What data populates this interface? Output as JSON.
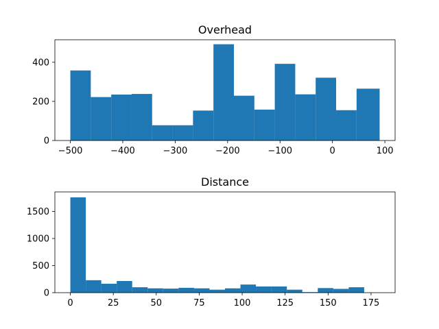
{
  "chart_data": [
    {
      "type": "bar",
      "title": "Overhead",
      "xlabel": "",
      "ylabel": "",
      "xlim": [
        -529.5,
        119.5
      ],
      "ylim": [
        0,
        515
      ],
      "xticks": [
        -500,
        -400,
        -300,
        -200,
        -100,
        0,
        100
      ],
      "yticks": [
        0,
        200,
        400
      ],
      "bins": [
        -500,
        -461,
        -422,
        -383,
        -344,
        -305,
        -266,
        -227,
        -188,
        -149,
        -110,
        -71,
        -32,
        7,
        46,
        90
      ],
      "counts": [
        358,
        222,
        235,
        238,
        78,
        78,
        153,
        492,
        229,
        158,
        392,
        236,
        321,
        155,
        265
      ],
      "color": "#1f77b4",
      "grid": false
    },
    {
      "type": "bar",
      "title": "Distance",
      "xlabel": "",
      "ylabel": "",
      "xlim": [
        -9,
        189
      ],
      "ylim": [
        0,
        1860
      ],
      "xticks": [
        0,
        25,
        50,
        75,
        100,
        125,
        150,
        175
      ],
      "yticks": [
        0,
        500,
        1000,
        1500
      ],
      "bins": [
        0,
        9,
        18,
        27,
        36,
        45,
        54,
        63,
        72,
        81,
        90,
        99,
        108,
        117,
        126,
        135,
        144,
        153,
        162,
        171,
        180
      ],
      "counts": [
        1760,
        230,
        165,
        215,
        100,
        80,
        75,
        90,
        80,
        55,
        80,
        150,
        115,
        115,
        55,
        10,
        85,
        70,
        100,
        0
      ],
      "color": "#1f77b4",
      "grid": false
    }
  ]
}
